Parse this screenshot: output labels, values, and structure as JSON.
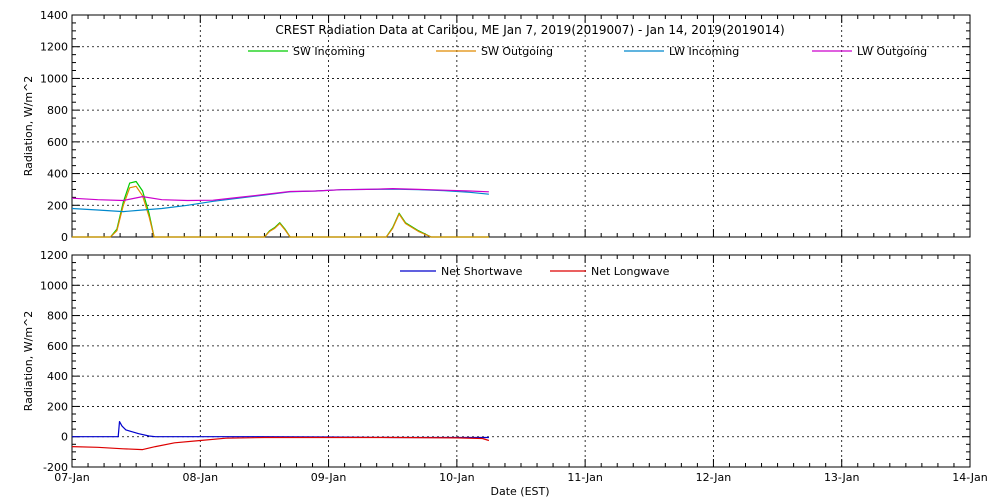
{
  "chart_data": [
    {
      "type": "line",
      "title": "CREST Radiation Data at Caribou, ME   Jan  7, 2019(2019007) - Jan 14, 2019(2019014)",
      "ylabel": "Radiation, W/m^2",
      "xlabel": "",
      "ylim": [
        0,
        1400
      ],
      "yticks": [
        "0",
        "200",
        "400",
        "600",
        "800",
        "1000",
        "1200",
        "1400"
      ],
      "xlim": [
        0,
        7
      ],
      "x_unit": "days since 07-Jan",
      "grid": true,
      "legend_position": "top",
      "series": [
        {
          "name": "SW Incoming",
          "color": "#00cc00",
          "x": [
            0,
            0.3,
            0.35,
            0.4,
            0.45,
            0.5,
            0.55,
            0.6,
            0.64,
            0.7,
            1.0,
            1.5,
            1.54,
            1.58,
            1.62,
            1.66,
            1.7,
            2.0,
            2.45,
            2.5,
            2.55,
            2.6,
            2.7,
            2.8,
            3.0,
            3.25
          ],
          "y": [
            0,
            0,
            50,
            220,
            340,
            350,
            290,
            150,
            0,
            0,
            0,
            0,
            40,
            60,
            90,
            50,
            0,
            0,
            0,
            60,
            150,
            90,
            40,
            0,
            0,
            0
          ]
        },
        {
          "name": "SW Outgoing",
          "color": "#e08a00",
          "x": [
            0,
            0.3,
            0.35,
            0.4,
            0.45,
            0.5,
            0.55,
            0.6,
            0.64,
            0.7,
            1.0,
            1.5,
            1.54,
            1.58,
            1.62,
            1.66,
            1.7,
            2.0,
            2.45,
            2.5,
            2.55,
            2.6,
            2.7,
            2.8,
            3.0,
            3.25
          ],
          "y": [
            0,
            0,
            40,
            200,
            310,
            320,
            260,
            130,
            0,
            0,
            0,
            0,
            35,
            55,
            85,
            45,
            0,
            0,
            0,
            55,
            145,
            85,
            35,
            0,
            0,
            0
          ]
        },
        {
          "name": "LW Incoming",
          "color": "#0088cc",
          "x": [
            0,
            0.2,
            0.4,
            0.55,
            0.7,
            0.9,
            1.1,
            1.3,
            1.5,
            1.7,
            1.9,
            2.1,
            2.3,
            2.5,
            2.7,
            2.9,
            3.1,
            3.25
          ],
          "y": [
            180,
            170,
            160,
            170,
            180,
            200,
            225,
            245,
            265,
            285,
            290,
            298,
            300,
            302,
            298,
            292,
            282,
            270
          ]
        },
        {
          "name": "LW Outgoing",
          "color": "#cc00cc",
          "x": [
            0,
            0.2,
            0.4,
            0.55,
            0.7,
            0.9,
            1.1,
            1.3,
            1.5,
            1.7,
            1.9,
            2.1,
            2.3,
            2.5,
            2.7,
            2.9,
            3.1,
            3.25
          ],
          "y": [
            245,
            235,
            230,
            255,
            235,
            230,
            232,
            250,
            268,
            287,
            290,
            298,
            300,
            305,
            300,
            295,
            290,
            285
          ]
        }
      ]
    },
    {
      "type": "line",
      "title": "",
      "ylabel": "Radiation, W/m^2",
      "xlabel": "Date (EST)",
      "ylim": [
        -200,
        1200
      ],
      "yticks": [
        "-200",
        "0",
        "200",
        "400",
        "600",
        "800",
        "1000",
        "1200"
      ],
      "xlim": [
        0,
        7
      ],
      "x_unit": "days since 07-Jan",
      "categories": [
        "07-Jan",
        "08-Jan",
        "09-Jan",
        "10-Jan",
        "11-Jan",
        "12-Jan",
        "13-Jan",
        "14-Jan"
      ],
      "grid": true,
      "legend_position": "top",
      "series": [
        {
          "name": "Net Shortwave",
          "color": "#0000cc",
          "x": [
            0,
            0.36,
            0.37,
            0.39,
            0.42,
            0.46,
            0.52,
            0.6,
            0.65,
            1.0,
            1.5,
            2.0,
            2.5,
            3.0,
            3.25
          ],
          "y": [
            0,
            0,
            100,
            70,
            45,
            35,
            20,
            5,
            0,
            0,
            0,
            -2,
            -5,
            -5,
            -5
          ]
        },
        {
          "name": "Net Longwave",
          "color": "#dd0000",
          "x": [
            0,
            0.2,
            0.4,
            0.55,
            0.65,
            0.8,
            1.0,
            1.2,
            1.5,
            2.0,
            2.5,
            3.0,
            3.2,
            3.25
          ],
          "y": [
            -65,
            -70,
            -80,
            -85,
            -65,
            -40,
            -25,
            -10,
            -5,
            -5,
            -5,
            -8,
            -12,
            -25
          ]
        }
      ]
    }
  ]
}
